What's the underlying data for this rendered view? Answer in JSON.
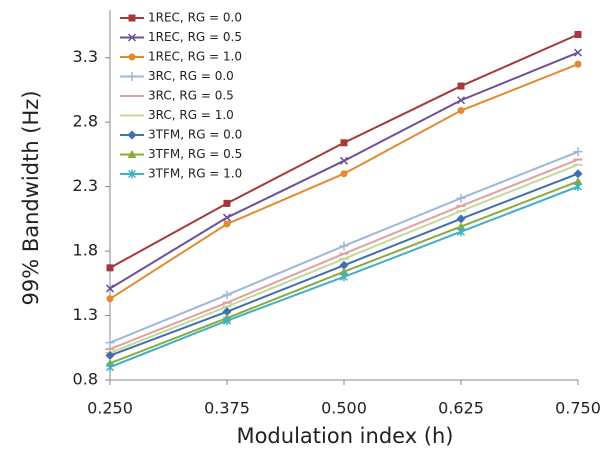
{
  "chart_data": {
    "type": "line",
    "x_label": "Modulation index (h)",
    "y_label": "99% Bandwidth (Hz)",
    "x": [
      0.25,
      0.375,
      0.5,
      0.625,
      0.75
    ],
    "xlim": [
      0.25,
      0.75
    ],
    "xticks": [
      {
        "value": 0.25,
        "label": "0.250"
      },
      {
        "value": 0.375,
        "label": "0.375"
      },
      {
        "value": 0.5,
        "label": "0.500"
      },
      {
        "value": 0.625,
        "label": "0.625"
      },
      {
        "value": 0.75,
        "label": "0.750"
      }
    ],
    "ylim": [
      0.8,
      3.67
    ],
    "yticks": [
      0.8,
      1.3,
      1.8,
      2.3,
      2.8,
      3.3
    ],
    "legend": "top-left",
    "series": [
      {
        "name": "1REC, RG = 0.0",
        "color": "#a5393a",
        "marker": "square",
        "values": [
          1.67,
          2.17,
          2.64,
          3.08,
          3.48
        ]
      },
      {
        "name": "1REC, RG = 0.5",
        "color": "#6e4f9a",
        "marker": "x",
        "values": [
          1.51,
          2.06,
          2.5,
          2.97,
          3.34
        ]
      },
      {
        "name": "1REC, RG = 1.0",
        "color": "#e48a2e",
        "marker": "circle",
        "values": [
          1.43,
          2.01,
          2.4,
          2.89,
          3.25
        ]
      },
      {
        "name": "3RC,  RG = 0.0",
        "color": "#9db6dc",
        "marker": "plus",
        "values": [
          1.09,
          1.46,
          1.84,
          2.21,
          2.57
        ]
      },
      {
        "name": "3RC,  RG = 0.5",
        "color": "#e0a0a0",
        "marker": "dash",
        "values": [
          1.04,
          1.4,
          1.78,
          2.15,
          2.51
        ]
      },
      {
        "name": "3RC,  RG = 1.0",
        "color": "#c4d79b",
        "marker": "dash",
        "values": [
          1.01,
          1.37,
          1.74,
          2.11,
          2.47
        ]
      },
      {
        "name": "3TFM,  RG = 0.0",
        "color": "#3f6fb0",
        "marker": "diamond",
        "values": [
          0.99,
          1.33,
          1.69,
          2.05,
          2.4
        ]
      },
      {
        "name": "3TFM,  RG = 0.5",
        "color": "#8aab3c",
        "marker": "triangle",
        "values": [
          0.93,
          1.28,
          1.64,
          1.99,
          2.34
        ]
      },
      {
        "name": "3TFM,  RG = 1.0",
        "color": "#3fb0c6",
        "marker": "star",
        "values": [
          0.9,
          1.26,
          1.6,
          1.95,
          2.3
        ]
      }
    ]
  }
}
